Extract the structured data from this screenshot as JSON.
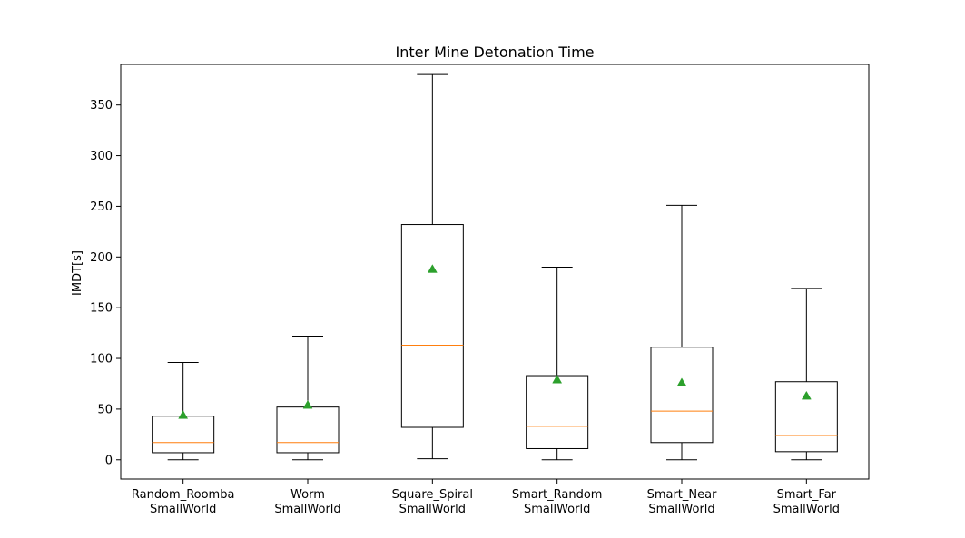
{
  "chart_data": {
    "type": "box",
    "title": "Inter Mine Detonation Time",
    "xlabel": "",
    "ylabel": "IMDT[s]",
    "ylim": [
      -19,
      390
    ],
    "yticks": [
      0,
      50,
      100,
      150,
      200,
      250,
      300,
      350
    ],
    "grid": false,
    "categories": [
      "Random_Roomba\nSmallWorld",
      "Worm\nSmallWorld",
      "Square_Spiral\nSmallWorld",
      "Smart_Random\nSmallWorld",
      "Smart_Near\nSmallWorld",
      "Smart_Far\nSmallWorld"
    ],
    "boxes": [
      {
        "whisker_low": 0,
        "q1": 7,
        "median": 17,
        "q3": 43,
        "whisker_high": 96,
        "mean": 44
      },
      {
        "whisker_low": 0,
        "q1": 7,
        "median": 17,
        "q3": 52,
        "whisker_high": 122,
        "mean": 54
      },
      {
        "whisker_low": 1,
        "q1": 32,
        "median": 113,
        "q3": 232,
        "whisker_high": 380,
        "mean": 188
      },
      {
        "whisker_low": 0,
        "q1": 11,
        "median": 33,
        "q3": 83,
        "whisker_high": 190,
        "mean": 79
      },
      {
        "whisker_low": 0,
        "q1": 17,
        "median": 48,
        "q3": 111,
        "whisker_high": 251,
        "mean": 76
      },
      {
        "whisker_low": 0,
        "q1": 8,
        "median": 24,
        "q3": 77,
        "whisker_high": 169,
        "mean": 63
      }
    ],
    "colors": {
      "box": "#000000",
      "median": "#ff7f0e",
      "mean_marker": "#2ca02c"
    }
  }
}
